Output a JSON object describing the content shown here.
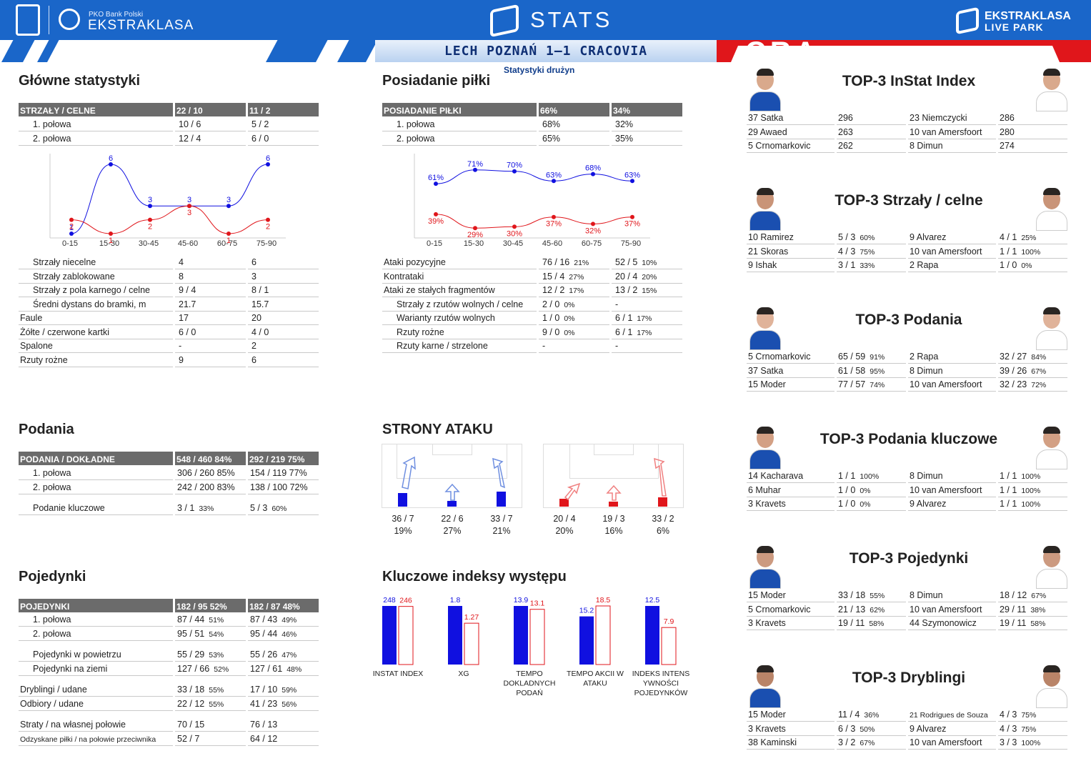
{
  "header": {
    "pko_small": "PKO Bank Polski",
    "league": "EKSTRAKLASA",
    "stats": "STATS",
    "livepark1": "EKSTRAKLASA",
    "livepark2": "LIVE PARK",
    "match": "LECH POZNAŃ 1–1 CRACOVIA",
    "subtitle": "Statystyki drużyn"
  },
  "colors": {
    "home": "#1010e0",
    "away": "#e0161b",
    "header_blue": "#1a66c9",
    "table_header": "#6b6b6b"
  },
  "sections": {
    "main": "Główne statystyki",
    "possession": "Posiadanie piłki",
    "passes": "Podania",
    "attack": "STRONY ATAKU",
    "duels": "Pojedynki",
    "key": "Kluczowe indeksy występu"
  },
  "shots": {
    "header": [
      "STRZAŁY / CELNE",
      "22 / 10",
      "11 / 2"
    ],
    "rows": [
      [
        "1. połowa",
        "10 / 6",
        "5 / 2"
      ],
      [
        "2. połowa",
        "12 / 4",
        "6 / 0"
      ]
    ]
  },
  "main_rows": [
    [
      "Strzały niecelne",
      "4",
      "6",
      true
    ],
    [
      "Strzały zablokowane",
      "8",
      "3",
      true
    ],
    [
      "Strzały z pola karnego / celne",
      "9 / 4",
      "8 / 1",
      true
    ],
    [
      "Średni dystans do bramki, m",
      "21.7",
      "15.7",
      true
    ],
    [
      "Faule",
      "17",
      "20",
      false
    ],
    [
      "Żółte / czerwone kartki",
      "6 / 0",
      "4 / 0",
      false
    ],
    [
      "Spalone",
      "-",
      "2",
      false
    ],
    [
      "Rzuty rożne",
      "9",
      "6",
      false
    ]
  ],
  "poss": {
    "header": [
      "POSIADANIE PIŁKI",
      "66%",
      "34%"
    ],
    "rows": [
      [
        "1. połowa",
        "68%",
        "32%"
      ],
      [
        "2. połowa",
        "65%",
        "35%"
      ]
    ]
  },
  "poss_rows": [
    [
      "Ataki pozycyjne",
      "76 / 16",
      "21%",
      "52 / 5",
      "10%",
      false
    ],
    [
      "Kontrataki",
      "15 / 4",
      "27%",
      "20 / 4",
      "20%",
      false
    ],
    [
      "Ataki ze stałych fragmentów",
      "12 / 2",
      "17%",
      "13 / 2",
      "15%",
      false
    ],
    [
      "Strzały z rzutów wolnych / celne",
      "2 / 0",
      "0%",
      "-",
      "",
      true
    ],
    [
      "Warianty rzutów wolnych",
      "1 / 0",
      "0%",
      "6 / 1",
      "17%",
      true
    ],
    [
      "Rzuty rożne",
      "9 / 0",
      "0%",
      "6 / 1",
      "17%",
      true
    ],
    [
      "Rzuty karne / strzelone",
      "-",
      "",
      "-",
      "",
      true
    ]
  ],
  "passes": {
    "header": [
      "PODANIA / DOKŁADNE",
      "548 / 460 84%",
      "292 / 219 75%"
    ],
    "rows": [
      [
        "1. połowa",
        "306 / 260 85%",
        "154 / 119 77%"
      ],
      [
        "2. połowa",
        "242 / 200 83%",
        "138 / 100 72%"
      ]
    ],
    "key": [
      "Podanie kluczowe",
      "3 / 1",
      "33%",
      "5 / 3",
      "60%"
    ]
  },
  "duels": {
    "header": [
      "POJEDYNKI",
      "182 / 95 52%",
      "182 / 87 48%"
    ],
    "rows": [
      [
        "1. połowa",
        "87 / 44",
        "51%",
        "87 / 43",
        "49%",
        true
      ],
      [
        "2. połowa",
        "95 / 51",
        "54%",
        "95 / 44",
        "46%",
        true
      ],
      [
        "Pojedynki w powietrzu",
        "55 / 29",
        "53%",
        "55 / 26",
        "47%",
        true
      ],
      [
        "Pojedynki na ziemi",
        "127 / 66",
        "52%",
        "127 / 61",
        "48%",
        true
      ],
      [
        "Dryblingi / udane",
        "33 / 18",
        "55%",
        "17 / 10",
        "59%",
        false
      ],
      [
        "Odbiory / udane",
        "22 / 12",
        "55%",
        "41 / 23",
        "56%",
        false
      ],
      [
        "Straty / na własnej połowie",
        "70 / 15",
        "",
        "76 / 13",
        "",
        false
      ],
      [
        "Odzyskane piłki / na połowie przeciwnika",
        "52 / 7",
        "",
        "64 / 12",
        "",
        false
      ]
    ]
  },
  "attack": {
    "home": [
      [
        "36 / 7",
        "19%"
      ],
      [
        "22 / 6",
        "27%"
      ],
      [
        "33 / 7",
        "21%"
      ]
    ],
    "away": [
      [
        "20 / 4",
        "20%"
      ],
      [
        "19 / 3",
        "16%"
      ],
      [
        "33 / 2",
        "6%"
      ]
    ]
  },
  "tops": [
    {
      "title": "TOP-3 InStat Index",
      "rows": [
        [
          "37 Satka",
          "296",
          "",
          "23 Niemczycki",
          "286",
          ""
        ],
        [
          "29 Awaed",
          "263",
          "",
          "10 van Amersfoort",
          "280",
          ""
        ],
        [
          "5  Crnomarkovic",
          "262",
          "",
          "8  Dimun",
          "274",
          ""
        ]
      ]
    },
    {
      "title": "TOP-3 Strzały / celne",
      "rows": [
        [
          "10 Ramirez",
          "5 / 3",
          "60%",
          "9  Alvarez",
          "4 / 1",
          "25%"
        ],
        [
          "21 Skoras",
          "4 / 3",
          "75%",
          "10 van Amersfoort",
          "1 / 1",
          "100%"
        ],
        [
          "9  Ishak",
          "3 / 1",
          "33%",
          "2  Rapa",
          "1 / 0",
          "0%"
        ]
      ]
    },
    {
      "title": "TOP-3 Podania",
      "rows": [
        [
          "5  Crnomarkovic",
          "65 / 59",
          "91%",
          "2  Rapa",
          "32 / 27",
          "84%"
        ],
        [
          "37 Satka",
          "61 / 58",
          "95%",
          "8  Dimun",
          "39 / 26",
          "67%"
        ],
        [
          "15 Moder",
          "77 / 57",
          "74%",
          "10 van Amersfoort",
          "32 / 23",
          "72%"
        ]
      ]
    },
    {
      "title": "TOP-3 Podania kluczowe",
      "rows": [
        [
          "14 Kacharava",
          "1 / 1",
          "100%",
          "8  Dimun",
          "1 / 1",
          "100%"
        ],
        [
          "6  Muhar",
          "1 / 0",
          "0%",
          "10 van Amersfoort",
          "1 / 1",
          "100%"
        ],
        [
          "3  Kravets",
          "1 / 0",
          "0%",
          "9  Alvarez",
          "1 / 1",
          "100%"
        ]
      ]
    },
    {
      "title": "TOP-3 Pojedynki",
      "rows": [
        [
          "15 Moder",
          "33 / 18",
          "55%",
          "8  Dimun",
          "18 / 12",
          "67%"
        ],
        [
          "5  Crnomarkovic",
          "21 / 13",
          "62%",
          "10 van Amersfoort",
          "29 / 11",
          "38%"
        ],
        [
          "3  Kravets",
          "19 / 11",
          "58%",
          "44 Szymonowicz",
          "19 / 11",
          "58%"
        ]
      ]
    },
    {
      "title": "TOP-3 Dryblingi",
      "rows": [
        [
          "15 Moder",
          "11 / 4",
          "36%",
          "21 Rodrigues de Souza",
          "4 / 3",
          "75%"
        ],
        [
          "3  Kravets",
          "6 / 3",
          "50%",
          "9  Alvarez",
          "4 / 3",
          "75%"
        ],
        [
          "38 Kaminski",
          "3 / 2",
          "67%",
          "10 van Amersfoort",
          "3 / 3",
          "100%"
        ]
      ]
    }
  ],
  "chart_data": [
    {
      "type": "line",
      "categories": [
        "0-15",
        "15-30",
        "30-45",
        "45-60",
        "60-75",
        "75-90"
      ],
      "series": [
        {
          "values": [
            1,
            6,
            3,
            3,
            3,
            6
          ]
        },
        {
          "values": [
            2,
            1,
            2,
            3,
            1,
            2
          ]
        }
      ]
    },
    {
      "type": "line",
      "categories": [
        "0-15",
        "15-30",
        "30-45",
        "45-60",
        "60-75",
        "75-90"
      ],
      "series": [
        {
          "values": [
            61,
            71,
            70,
            63,
            68,
            63
          ]
        },
        {
          "values": [
            39,
            29,
            30,
            37,
            32,
            37
          ]
        }
      ],
      "unit": "%"
    },
    {
      "type": "bar",
      "categories": [
        "INSTAT INDEX",
        "XG",
        "TEMPO DOKLADNYCH PODAŃ",
        "TEMPO AKCII W ATAKU",
        "INDEKS INTENS YWNOŚCI POJEDYNKÓW"
      ],
      "series": [
        {
          "values": [
            248,
            1.8,
            13.9,
            15.2,
            12.5
          ]
        },
        {
          "values": [
            246,
            1.27,
            13.1,
            18.5,
            7.9
          ]
        }
      ]
    }
  ]
}
